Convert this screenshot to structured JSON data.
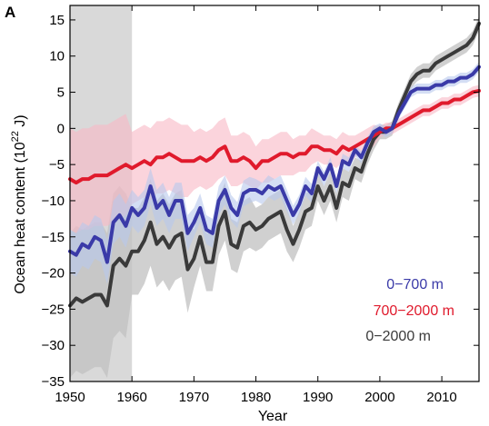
{
  "chart_data": {
    "type": "line",
    "panel_label": "A",
    "xlabel": "Year",
    "ylabel_main": "Ocean heat content (10",
    "ylabel_sup": "22",
    "ylabel_unit": " J)",
    "xlim": [
      1950,
      2016
    ],
    "ylim": [
      -35,
      17
    ],
    "x_ticks": [
      1950,
      1960,
      1970,
      1980,
      1990,
      2000,
      2010
    ],
    "x_tick_labels": [
      "1950",
      "1960",
      "1970",
      "1980",
      "1990",
      "2000",
      "2010"
    ],
    "y_ticks": [
      -35,
      -30,
      -25,
      -20,
      -15,
      -10,
      -5,
      0,
      5,
      10,
      15
    ],
    "y_tick_labels": [
      "−35",
      "−30",
      "−25",
      "−20",
      "−15",
      "−10",
      "−5",
      "0",
      "5",
      "10",
      "15"
    ],
    "shaded_period": [
      1950,
      1960
    ],
    "legend_position": "lower-right",
    "colors": {
      "shade_period": "#d9d9d9",
      "frame": "#000000"
    },
    "series": [
      {
        "name": "0−700 m",
        "color": "#3a3aa8",
        "band_color": "#b8c8ec",
        "x": [
          1950,
          1951,
          1952,
          1953,
          1954,
          1955,
          1956,
          1957,
          1958,
          1959,
          1960,
          1961,
          1962,
          1963,
          1964,
          1965,
          1966,
          1967,
          1968,
          1969,
          1970,
          1971,
          1972,
          1973,
          1974,
          1975,
          1976,
          1977,
          1978,
          1979,
          1980,
          1981,
          1982,
          1983,
          1984,
          1985,
          1986,
          1987,
          1988,
          1989,
          1990,
          1991,
          1992,
          1993,
          1994,
          1995,
          1996,
          1997,
          1998,
          1999,
          2000,
          2001,
          2002,
          2003,
          2004,
          2005,
          2006,
          2007,
          2008,
          2009,
          2010,
          2011,
          2012,
          2013,
          2014,
          2015,
          2016
        ],
        "y": [
          -17,
          -17.5,
          -16,
          -16.5,
          -15,
          -15.5,
          -18.5,
          -13,
          -12,
          -13.5,
          -11,
          -12,
          -11,
          -8,
          -11,
          -10,
          -12,
          -10,
          -10,
          -14.5,
          -13,
          -11,
          -14,
          -14.5,
          -10,
          -8.5,
          -11,
          -12,
          -9,
          -8.5,
          -8.5,
          -9,
          -8,
          -8.5,
          -8,
          -10,
          -12,
          -10.5,
          -8,
          -9,
          -5.5,
          -7,
          -5,
          -8,
          -4.5,
          -5,
          -3,
          -4,
          -2,
          -0.5,
          0,
          -0.5,
          0,
          2,
          3.5,
          5,
          5.5,
          5.5,
          5.5,
          6,
          6,
          6.5,
          6.5,
          7,
          7,
          7.5,
          8.5
        ],
        "band": [
          3,
          3,
          3,
          3,
          3,
          3,
          3,
          3,
          3,
          3,
          2.5,
          2.5,
          2.5,
          2.5,
          2.5,
          2.5,
          2.5,
          2.5,
          2.5,
          2.5,
          2,
          2,
          2,
          2,
          2,
          2,
          1.8,
          1.8,
          1.8,
          1.8,
          1.5,
          1.5,
          1.5,
          1.5,
          1.5,
          1.5,
          1.3,
          1.3,
          1.3,
          1.3,
          1,
          1,
          1,
          1,
          1,
          1,
          0.8,
          0.8,
          0.8,
          0.8,
          0.7,
          0.7,
          0.7,
          0.7,
          0.7,
          0.7,
          0.7,
          0.7,
          0.7,
          0.7,
          0.7,
          0.7,
          0.7,
          0.7,
          0.7,
          0.7,
          0.7
        ]
      },
      {
        "name": "700−2000 m",
        "color": "#e01a2c",
        "band_color": "#f8b8c4",
        "x": [
          1950,
          1951,
          1952,
          1953,
          1954,
          1955,
          1956,
          1957,
          1958,
          1959,
          1960,
          1961,
          1962,
          1963,
          1964,
          1965,
          1966,
          1967,
          1968,
          1969,
          1970,
          1971,
          1972,
          1973,
          1974,
          1975,
          1976,
          1977,
          1978,
          1979,
          1980,
          1981,
          1982,
          1983,
          1984,
          1985,
          1986,
          1987,
          1988,
          1989,
          1990,
          1991,
          1992,
          1993,
          1994,
          1995,
          1996,
          1997,
          1998,
          1999,
          2000,
          2001,
          2002,
          2003,
          2004,
          2005,
          2006,
          2007,
          2008,
          2009,
          2010,
          2011,
          2012,
          2013,
          2014,
          2015,
          2016
        ],
        "y": [
          -7,
          -7.5,
          -7,
          -7,
          -6.5,
          -6.5,
          -6.5,
          -6,
          -5.5,
          -5,
          -5.5,
          -5,
          -4.5,
          -5,
          -4,
          -4,
          -3.5,
          -4,
          -4.5,
          -4.5,
          -4.5,
          -4,
          -4.5,
          -4,
          -3,
          -2.5,
          -4.5,
          -4.5,
          -4,
          -4.5,
          -5.5,
          -4.5,
          -4.5,
          -4,
          -3.5,
          -3.5,
          -4,
          -3.5,
          -3.5,
          -2.5,
          -2.5,
          -3,
          -3,
          -3.5,
          -2.5,
          -3,
          -2.5,
          -2,
          -1.5,
          -1,
          -0.5,
          0,
          0,
          0.5,
          1,
          1.5,
          2,
          2.5,
          2.5,
          3,
          3.5,
          3.5,
          4,
          4,
          4.5,
          5,
          5.2
        ],
        "band": [
          7,
          7,
          7,
          7,
          7,
          7,
          7,
          7,
          7,
          7,
          5,
          5,
          5,
          5,
          5,
          5,
          5,
          5,
          5,
          5,
          4,
          4,
          4,
          4,
          4,
          4,
          3.5,
          3.5,
          3.5,
          3.5,
          3,
          3,
          3,
          3,
          3,
          3,
          2.5,
          2.5,
          2.5,
          2.5,
          2,
          2,
          2,
          2,
          2,
          2,
          1.5,
          1.5,
          1.5,
          1.5,
          0.8,
          0.8,
          0.8,
          0.8,
          0.8,
          0.8,
          0.8,
          0.8,
          0.8,
          0.8,
          0.8,
          0.8,
          0.8,
          0.8,
          0.8,
          0.8,
          0.8
        ]
      },
      {
        "name": "0−2000 m",
        "color": "#3a3a3a",
        "band_color": "#c0c0c0",
        "x": [
          1950,
          1951,
          1952,
          1953,
          1954,
          1955,
          1956,
          1957,
          1958,
          1959,
          1960,
          1961,
          1962,
          1963,
          1964,
          1965,
          1966,
          1967,
          1968,
          1969,
          1970,
          1971,
          1972,
          1973,
          1974,
          1975,
          1976,
          1977,
          1978,
          1979,
          1980,
          1981,
          1982,
          1983,
          1984,
          1985,
          1986,
          1987,
          1988,
          1989,
          1990,
          1991,
          1992,
          1993,
          1994,
          1995,
          1996,
          1997,
          1998,
          1999,
          2000,
          2001,
          2002,
          2003,
          2004,
          2005,
          2006,
          2007,
          2008,
          2009,
          2010,
          2011,
          2012,
          2013,
          2014,
          2015,
          2016
        ],
        "y": [
          -24.5,
          -23.5,
          -24,
          -23.5,
          -23,
          -23,
          -24.5,
          -19,
          -18,
          -19,
          -17,
          -17,
          -15.5,
          -13,
          -16,
          -15,
          -16.5,
          -15,
          -14.5,
          -19.5,
          -18,
          -15,
          -18.5,
          -18.5,
          -13.5,
          -11.5,
          -16,
          -16.5,
          -13.5,
          -13,
          -14,
          -13.5,
          -12.5,
          -12,
          -11.5,
          -14,
          -16,
          -14,
          -11.5,
          -11,
          -8,
          -10,
          -8,
          -11,
          -7.5,
          -8,
          -5.5,
          -6,
          -3.5,
          -1.5,
          -0.5,
          -0.5,
          0,
          2.5,
          4.5,
          6.5,
          7.5,
          8,
          8,
          9,
          9.5,
          10,
          10.5,
          11,
          11.5,
          12.5,
          14.5
        ],
        "band": [
          10,
          10,
          10,
          10,
          10,
          10,
          10,
          10,
          10,
          10,
          6,
          6,
          6,
          6,
          6,
          6,
          6,
          6,
          6,
          6,
          4,
          4,
          4,
          4,
          4,
          4,
          3.5,
          3.5,
          3.5,
          3.5,
          3,
          3,
          3,
          3,
          3,
          3,
          2.5,
          2.5,
          2.5,
          2.5,
          2,
          2,
          2,
          2,
          2,
          2,
          1.5,
          1.5,
          1.5,
          1.5,
          1,
          1,
          1,
          1,
          1,
          1,
          1,
          1,
          1,
          1,
          1,
          1,
          1,
          1,
          1,
          1,
          1
        ]
      }
    ]
  }
}
